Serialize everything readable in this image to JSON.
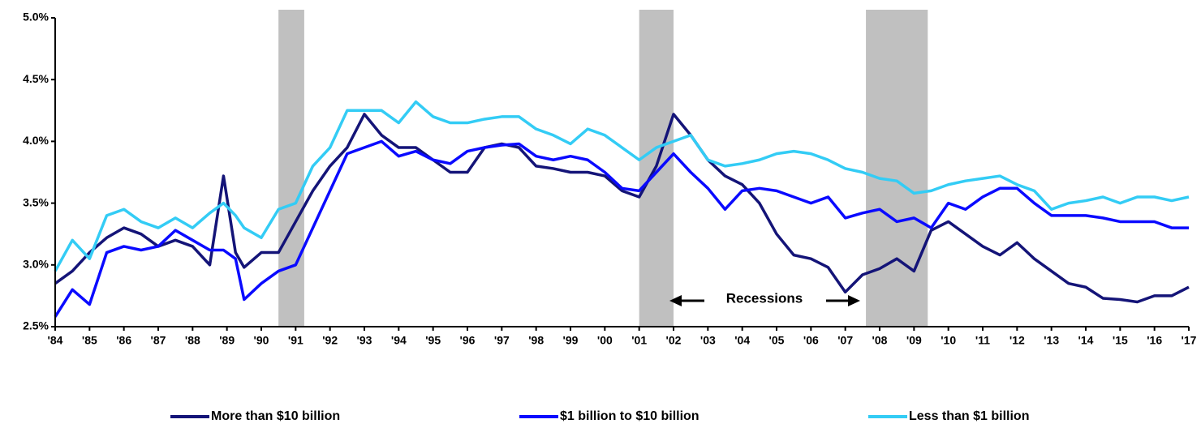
{
  "chart_data": {
    "type": "line",
    "x": [
      1984,
      1984.5,
      1985,
      1985.5,
      1986,
      1986.5,
      1987,
      1987.5,
      1988,
      1988.5,
      1988.9,
      1989.25,
      1989.5,
      1990,
      1990.5,
      1991,
      1991.5,
      1992,
      1992.5,
      1993,
      1993.5,
      1994,
      1994.5,
      1995,
      1995.5,
      1996,
      1996.5,
      1997,
      1997.5,
      1998,
      1998.5,
      1999,
      1999.5,
      2000,
      2000.5,
      2001,
      2001.5,
      2002,
      2002.5,
      2003,
      2003.5,
      2004,
      2004.5,
      2005,
      2005.5,
      2006,
      2006.5,
      2007,
      2007.5,
      2008,
      2008.5,
      2009,
      2009.5,
      2010,
      2010.5,
      2011,
      2011.5,
      2012,
      2012.5,
      2013,
      2013.5,
      2014,
      2014.5,
      2015,
      2015.5,
      2016,
      2016.5,
      2017
    ],
    "series": [
      {
        "name": "More than $10 billion",
        "color": "#141478",
        "values": [
          2.85,
          2.95,
          3.1,
          3.22,
          3.3,
          3.25,
          3.15,
          3.2,
          3.15,
          3.0,
          3.72,
          3.1,
          2.98,
          3.1,
          3.1,
          3.35,
          3.6,
          3.8,
          3.95,
          4.22,
          4.05,
          3.95,
          3.95,
          3.85,
          3.75,
          3.75,
          3.95,
          3.98,
          3.95,
          3.8,
          3.78,
          3.75,
          3.75,
          3.72,
          3.6,
          3.55,
          3.8,
          4.22,
          4.05,
          3.85,
          3.72,
          3.65,
          3.5,
          3.25,
          3.08,
          3.05,
          2.98,
          2.78,
          2.92,
          2.97,
          3.05,
          2.95,
          3.28,
          3.35,
          3.25,
          3.15,
          3.08,
          3.18,
          3.05,
          2.95,
          2.85,
          2.82,
          2.73,
          2.72,
          2.7,
          2.75,
          2.75,
          2.82
        ]
      },
      {
        "name": "$1 billion to $10 billion",
        "color": "#0a0aff",
        "values": [
          2.58,
          2.8,
          2.68,
          3.1,
          3.15,
          3.12,
          3.15,
          3.28,
          3.2,
          3.12,
          3.12,
          3.05,
          2.72,
          2.85,
          2.95,
          3.0,
          3.3,
          3.6,
          3.9,
          3.95,
          4.0,
          3.88,
          3.92,
          3.85,
          3.82,
          3.92,
          3.95,
          3.97,
          3.98,
          3.88,
          3.85,
          3.88,
          3.85,
          3.75,
          3.62,
          3.6,
          3.75,
          3.9,
          3.75,
          3.62,
          3.45,
          3.6,
          3.62,
          3.6,
          3.55,
          3.5,
          3.55,
          3.38,
          3.42,
          3.45,
          3.35,
          3.38,
          3.3,
          3.5,
          3.45,
          3.55,
          3.62,
          3.62,
          3.5,
          3.4,
          3.4,
          3.4,
          3.38,
          3.35,
          3.35,
          3.35,
          3.3,
          3.3
        ]
      },
      {
        "name": "Less than $1 billion",
        "color": "#33ccf5",
        "values": [
          2.95,
          3.2,
          3.05,
          3.4,
          3.45,
          3.35,
          3.3,
          3.38,
          3.3,
          3.42,
          3.5,
          3.4,
          3.3,
          3.22,
          3.45,
          3.5,
          3.8,
          3.95,
          4.25,
          4.25,
          4.25,
          4.15,
          4.32,
          4.2,
          4.15,
          4.15,
          4.18,
          4.2,
          4.2,
          4.1,
          4.05,
          3.98,
          4.1,
          4.05,
          3.95,
          3.85,
          3.95,
          4.0,
          4.05,
          3.85,
          3.8,
          3.82,
          3.85,
          3.9,
          3.92,
          3.9,
          3.85,
          3.78,
          3.75,
          3.7,
          3.68,
          3.58,
          3.6,
          3.65,
          3.68,
          3.7,
          3.72,
          3.65,
          3.6,
          3.45,
          3.5,
          3.52,
          3.55,
          3.5,
          3.55,
          3.55,
          3.52,
          3.55
        ]
      }
    ],
    "xlim": [
      1984,
      2017
    ],
    "xticks": [
      {
        "value": 1984,
        "label": "'84"
      },
      {
        "value": 1985,
        "label": "'85"
      },
      {
        "value": 1986,
        "label": "'86"
      },
      {
        "value": 1987,
        "label": "'87"
      },
      {
        "value": 1988,
        "label": "'88"
      },
      {
        "value": 1989,
        "label": "'89"
      },
      {
        "value": 1990,
        "label": "'90"
      },
      {
        "value": 1991,
        "label": "'91"
      },
      {
        "value": 1992,
        "label": "'92"
      },
      {
        "value": 1993,
        "label": "'93"
      },
      {
        "value": 1994,
        "label": "'94"
      },
      {
        "value": 1995,
        "label": "'95"
      },
      {
        "value": 1996,
        "label": "'96"
      },
      {
        "value": 1997,
        "label": "'97"
      },
      {
        "value": 1998,
        "label": "'98"
      },
      {
        "value": 1999,
        "label": "'99"
      },
      {
        "value": 2000,
        "label": "'00"
      },
      {
        "value": 2001,
        "label": "'01"
      },
      {
        "value": 2002,
        "label": "'02"
      },
      {
        "value": 2003,
        "label": "'03"
      },
      {
        "value": 2004,
        "label": "'04"
      },
      {
        "value": 2005,
        "label": "'05"
      },
      {
        "value": 2006,
        "label": "'06"
      },
      {
        "value": 2007,
        "label": "'07"
      },
      {
        "value": 2008,
        "label": "'08"
      },
      {
        "value": 2009,
        "label": "'09"
      },
      {
        "value": 2010,
        "label": "'10"
      },
      {
        "value": 2011,
        "label": "'11"
      },
      {
        "value": 2012,
        "label": "'12"
      },
      {
        "value": 2013,
        "label": "'13"
      },
      {
        "value": 2014,
        "label": "'14"
      },
      {
        "value": 2015,
        "label": "'15"
      },
      {
        "value": 2016,
        "label": "'16"
      },
      {
        "value": 2017,
        "label": "'17"
      }
    ],
    "ylim": [
      2.5,
      5.0
    ],
    "yticks": [
      {
        "value": 2.5,
        "label": "2.5%"
      },
      {
        "value": 3.0,
        "label": "3.0%"
      },
      {
        "value": 3.5,
        "label": "3.5%"
      },
      {
        "value": 4.0,
        "label": "4.0%"
      },
      {
        "value": 4.5,
        "label": "4.5%"
      },
      {
        "value": 5.0,
        "label": "5.0%"
      }
    ],
    "shaded_regions": [
      [
        1990.5,
        1991.25
      ],
      [
        2001.0,
        2002.0
      ],
      [
        2007.6,
        2009.4
      ]
    ],
    "shade_color": "#c0c0c0",
    "annotation": "Recessions",
    "grid": false,
    "legend": "bottom"
  }
}
